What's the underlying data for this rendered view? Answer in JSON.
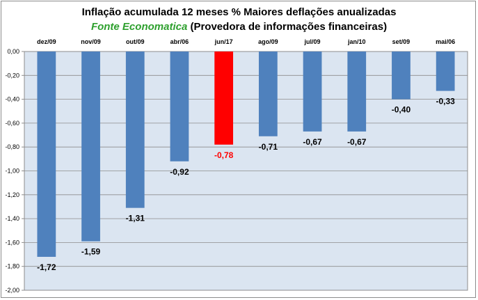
{
  "chart_data": {
    "type": "bar",
    "title": "Inflação acumulada 12 meses % Maiores deflações anualizadas",
    "subtitle_source": "Fonte Economatica",
    "subtitle_rest": "(Provedora de informações financeiras)",
    "categories": [
      "dez/09",
      "nov/09",
      "out/09",
      "abr/06",
      "jun/17",
      "ago/09",
      "jul/09",
      "jan/10",
      "set/09",
      "mai/06"
    ],
    "values": [
      -1.72,
      -1.59,
      -1.31,
      -0.92,
      -0.78,
      -0.71,
      -0.67,
      -0.67,
      -0.4,
      -0.33
    ],
    "value_labels": [
      "-1,72",
      "-1,59",
      "-1,31",
      "-0,92",
      "-0,78",
      "-0,71",
      "-0,67",
      "-0,67",
      "-0,40",
      "-0,33"
    ],
    "ylim": [
      -2.0,
      0.0
    ],
    "yticks": [
      "0,00",
      "-0,20",
      "-0,40",
      "-0,60",
      "-0,80",
      "-1,00",
      "-1,20",
      "-1,40",
      "-1,60",
      "-1,80",
      "-2,00"
    ],
    "highlight_index": 4,
    "colors": {
      "bar": "#4f81bd",
      "highlight": "#ff0000",
      "plot_bg": "#dbe5f1",
      "source_text": "#2ea02e",
      "highlight_label": "#ff0000"
    },
    "grid": true,
    "legend": "none"
  }
}
